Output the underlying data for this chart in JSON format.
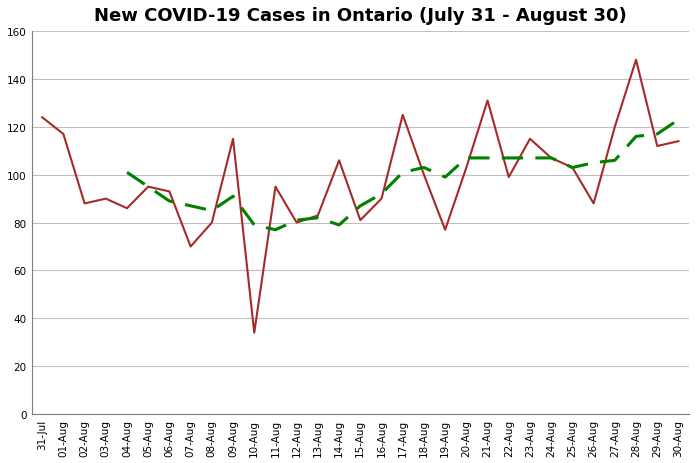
{
  "title": "New COVID-19 Cases in Ontario (July 31 - August 30)",
  "labels": [
    "31-Jul",
    "01-Aug",
    "02-Aug",
    "03-Aug",
    "04-Aug",
    "05-Aug",
    "06-Aug",
    "07-Aug",
    "08-Aug",
    "09-Aug",
    "10-Aug",
    "11-Aug",
    "12-Aug",
    "13-Aug",
    "14-Aug",
    "15-Aug",
    "16-Aug",
    "17-Aug",
    "18-Aug",
    "19-Aug",
    "20-Aug",
    "21-Aug",
    "22-Aug",
    "23-Aug",
    "24-Aug",
    "25-Aug",
    "26-Aug",
    "27-Aug",
    "28-Aug",
    "29-Aug",
    "30-Aug"
  ],
  "daily_cases": [
    124,
    117,
    88,
    90,
    86,
    95,
    93,
    70,
    80,
    115,
    34,
    95,
    80,
    83,
    106,
    81,
    90,
    125,
    100,
    77,
    103,
    131,
    99,
    115,
    107,
    103,
    88,
    120,
    148,
    112,
    114
  ],
  "moving_avg": [
    null,
    null,
    null,
    null,
    101,
    95,
    89,
    87,
    85,
    91,
    79,
    77,
    81,
    82,
    79,
    87,
    92,
    101,
    103,
    99,
    107,
    107,
    107,
    107,
    107,
    103,
    105,
    106,
    116,
    117,
    123
  ],
  "line_color": "#a52a2a",
  "mavg_color": "#008000",
  "bg_color": "#ffffff",
  "plot_bg_color": "#ffffff",
  "grid_color": "#c0c0c0",
  "border_color": "#808080",
  "ylim": [
    0,
    160
  ],
  "yticks": [
    0,
    20,
    40,
    60,
    80,
    100,
    120,
    140,
    160
  ],
  "title_fontsize": 13,
  "tick_fontsize": 7.5
}
